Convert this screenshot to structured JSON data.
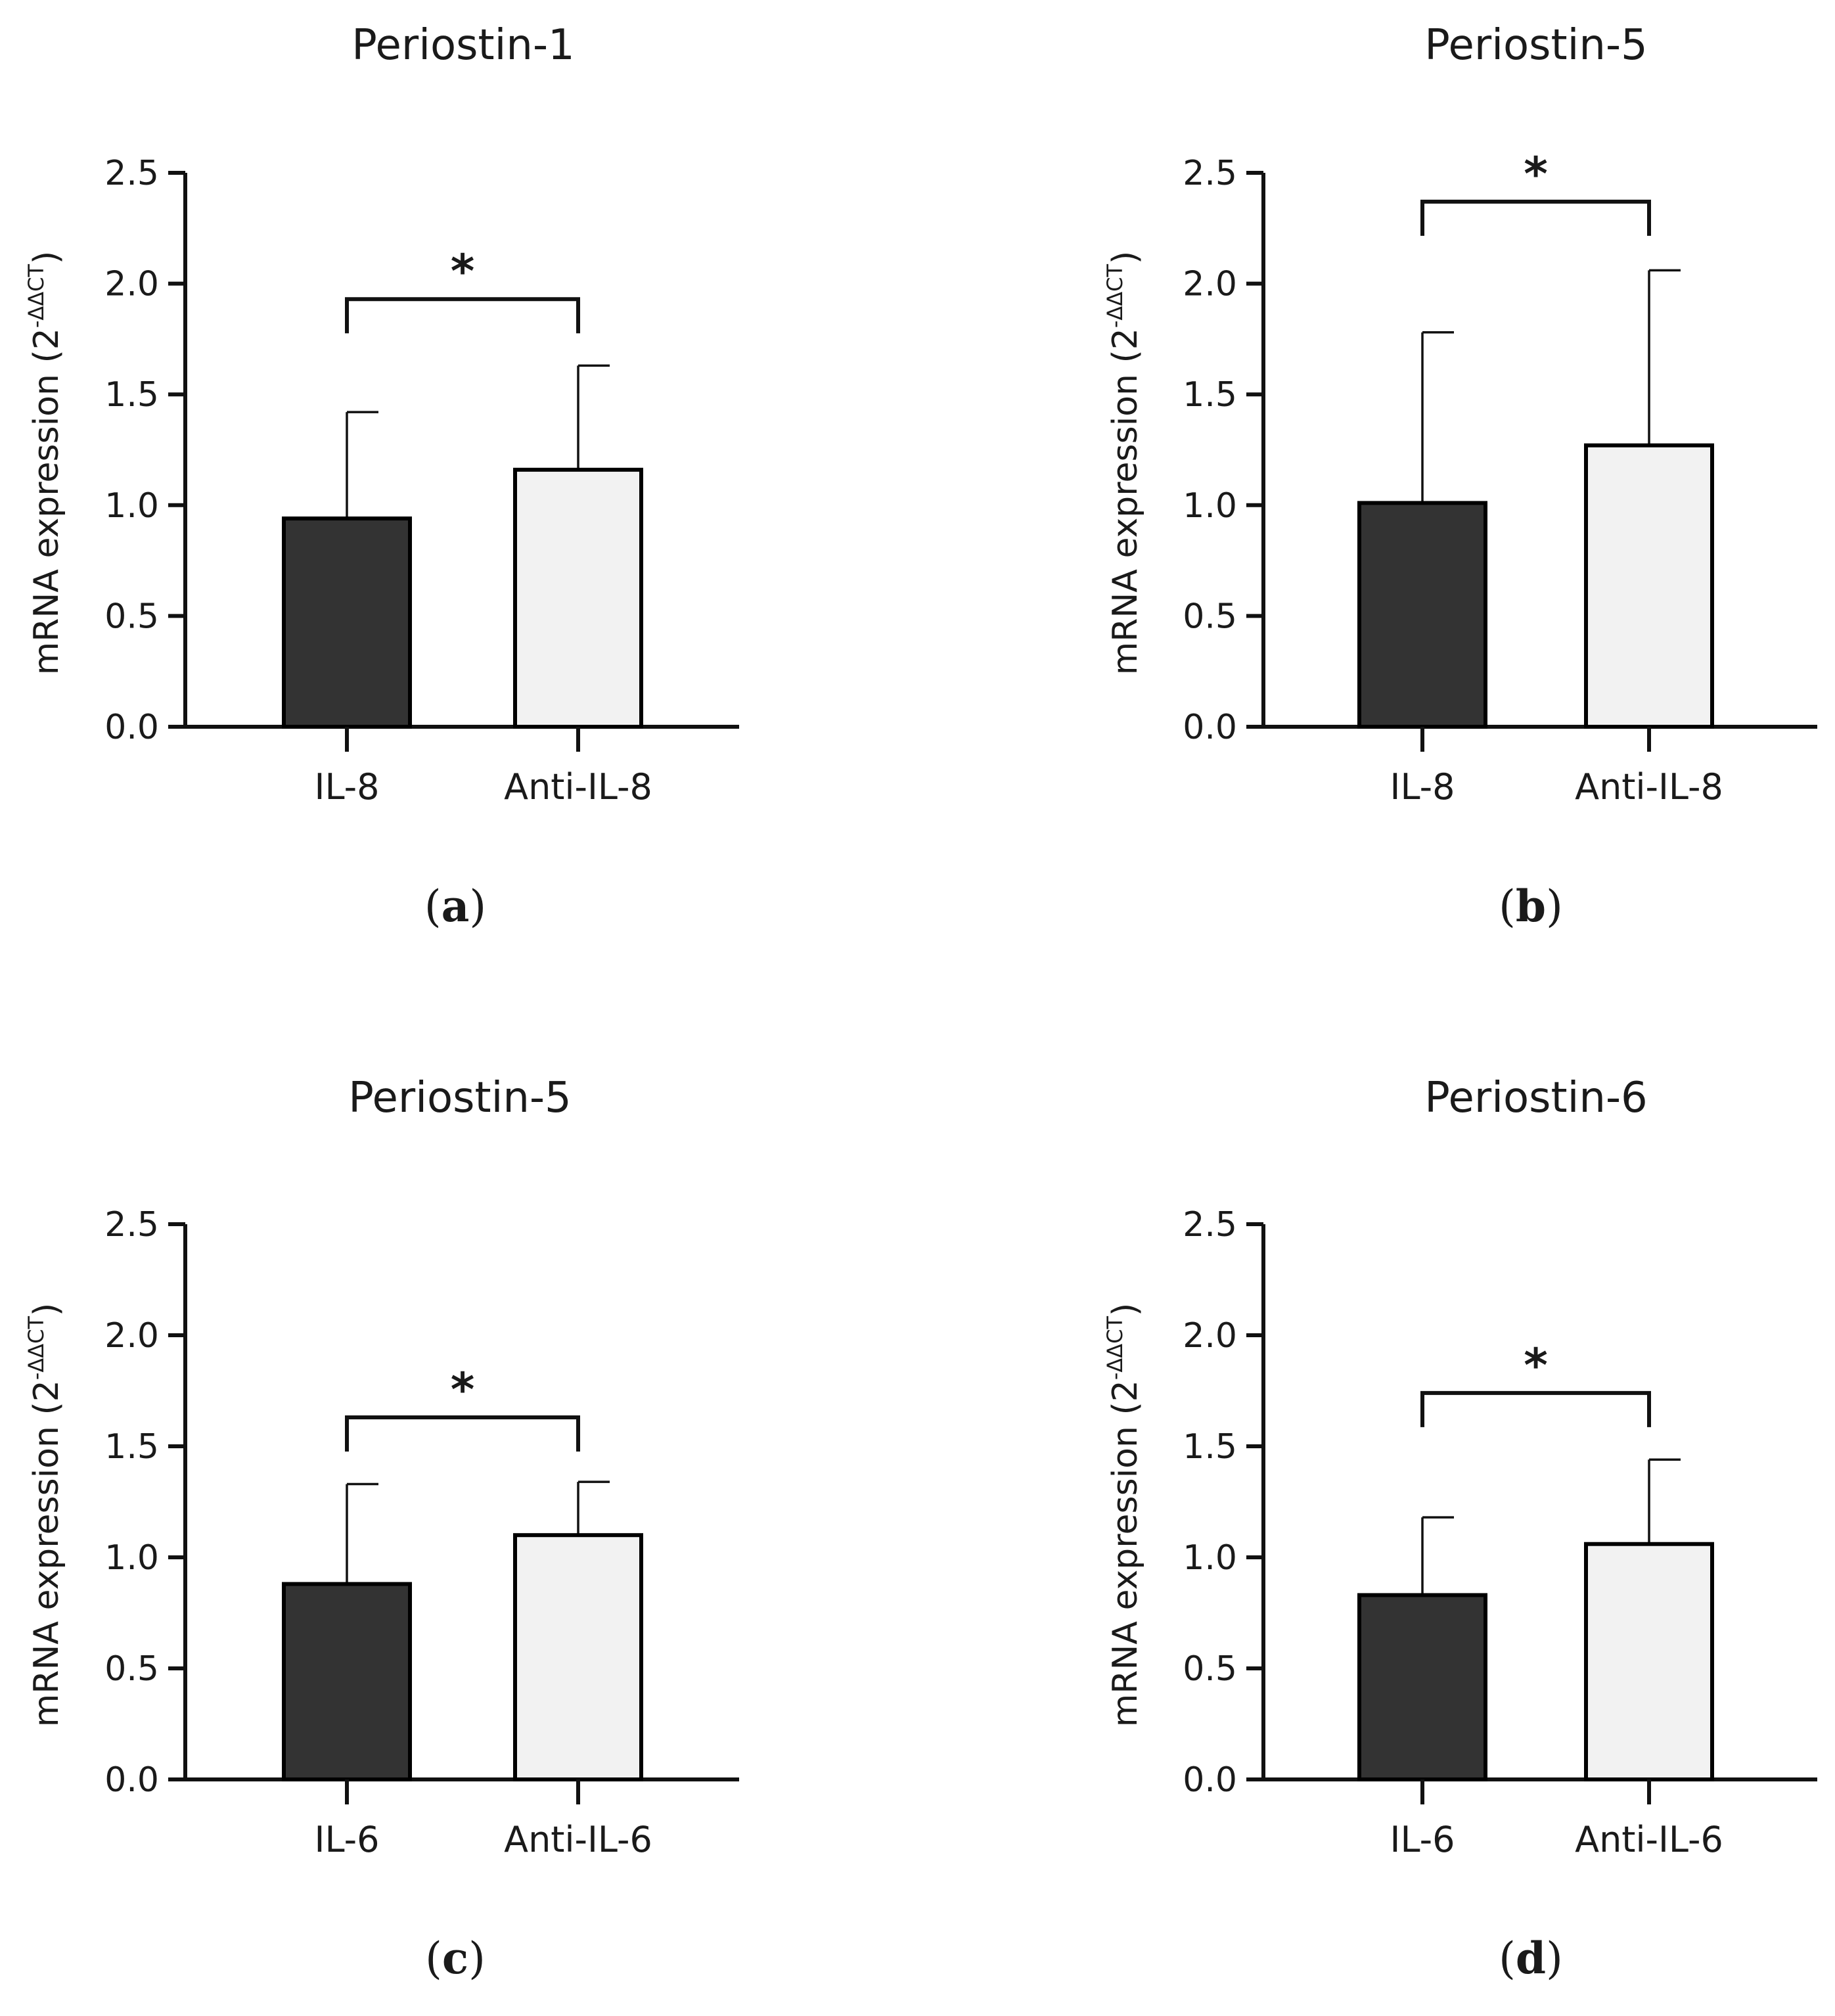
{
  "colors": {
    "axis": "#111111",
    "bar_dark": "#333333",
    "bar_light": "#f2f2f2",
    "bar_edge": "#000000"
  },
  "chart_data": [
    {
      "type": "bar",
      "panel": "a",
      "title": "Periostin-1",
      "categories": [
        "IL-8",
        "Anti-IL-8"
      ],
      "values": [
        0.94,
        1.16
      ],
      "errors": [
        0.48,
        0.47
      ],
      "ylim": [
        0,
        2.5
      ],
      "yticks": [
        "0.0",
        "0.5",
        "1.0",
        "1.5",
        "2.0",
        "2.5"
      ],
      "ylabel_main": "mRNA expression (2",
      "ylabel_sup": "-ΔΔCT",
      "ylabel_close": ")",
      "significance": "*",
      "bracket_y": 1.93
    },
    {
      "type": "bar",
      "panel": "b",
      "title": "Periostin-5",
      "categories": [
        "IL-8",
        "Anti-IL-8"
      ],
      "values": [
        1.01,
        1.27
      ],
      "errors": [
        0.77,
        0.79
      ],
      "ylim": [
        0,
        2.5
      ],
      "yticks": [
        "0.0",
        "0.5",
        "1.0",
        "1.5",
        "2.0",
        "2.5"
      ],
      "ylabel_main": "mRNA expression (2",
      "ylabel_sup": "-ΔΔCT",
      "ylabel_close": ")",
      "significance": "*",
      "bracket_y": 2.37
    },
    {
      "type": "bar",
      "panel": "c",
      "title": "Periostin-5",
      "categories": [
        "IL-6",
        "Anti-IL-6"
      ],
      "values": [
        0.88,
        1.1
      ],
      "errors": [
        0.45,
        0.24
      ],
      "ylim": [
        0,
        2.5
      ],
      "yticks": [
        "0.0",
        "0.5",
        "1.0",
        "1.5",
        "2.0",
        "2.5"
      ],
      "ylabel_main": "mRNA expression (2",
      "ylabel_sup": "-ΔΔCT",
      "ylabel_close": ")",
      "significance": "*",
      "bracket_y": 1.63
    },
    {
      "type": "bar",
      "panel": "d",
      "title": "Periostin-6",
      "categories": [
        "IL-6",
        "Anti-IL-6"
      ],
      "values": [
        0.83,
        1.06
      ],
      "errors": [
        0.35,
        0.38
      ],
      "ylim": [
        0,
        2.5
      ],
      "yticks": [
        "0.0",
        "0.5",
        "1.0",
        "1.5",
        "2.0",
        "2.5"
      ],
      "ylabel_main": "mRNA expression (2",
      "ylabel_sup": "-ΔΔCT",
      "ylabel_close": ")",
      "significance": "*",
      "bracket_y": 1.74
    }
  ]
}
